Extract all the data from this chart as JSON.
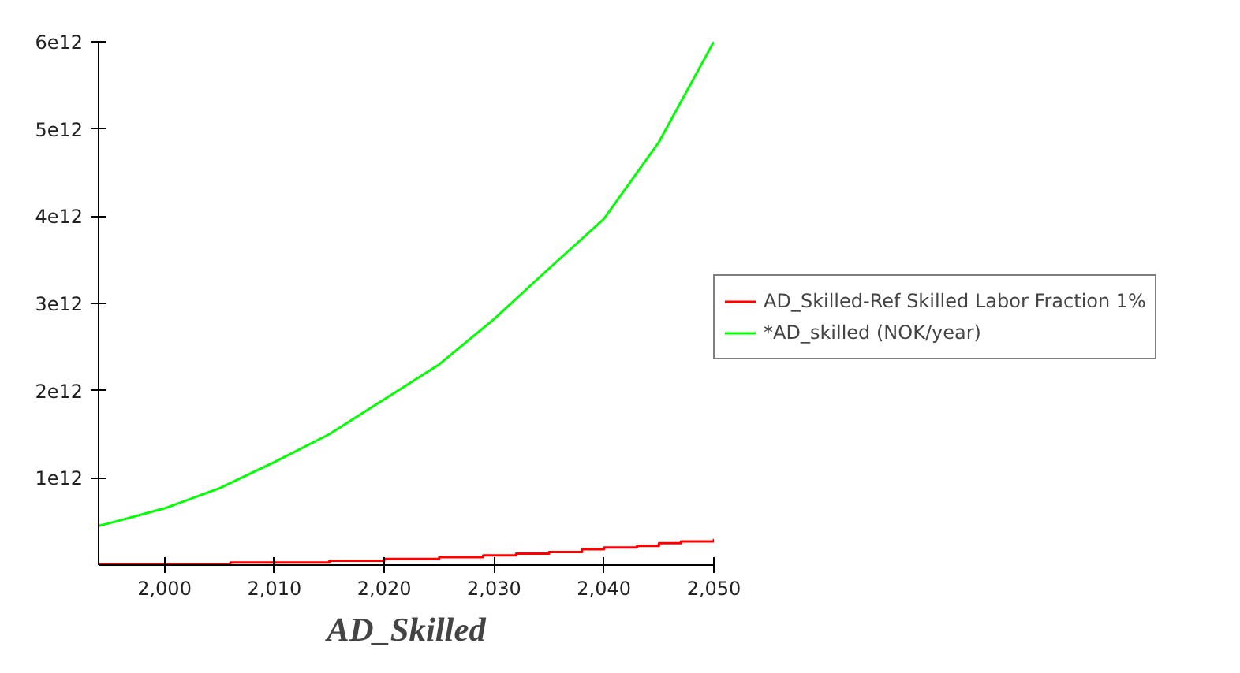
{
  "chart_data": {
    "type": "line",
    "title": "AD_Skilled",
    "xlim": [
      1994,
      2050
    ],
    "ylim": [
      0,
      6000000000000
    ],
    "xticks": [
      {
        "value": 2000,
        "label": "2,000"
      },
      {
        "value": 2010,
        "label": "2,010"
      },
      {
        "value": 2020,
        "label": "2,020"
      },
      {
        "value": 2030,
        "label": "2,030"
      },
      {
        "value": 2040,
        "label": "2,040"
      },
      {
        "value": 2050,
        "label": "2,050"
      }
    ],
    "yticks": [
      {
        "value": 1000000000000,
        "label": "1e12"
      },
      {
        "value": 2000000000000,
        "label": "2e12"
      },
      {
        "value": 3000000000000,
        "label": "3e12"
      },
      {
        "value": 4000000000000,
        "label": "4e12"
      },
      {
        "value": 5000000000000,
        "label": "5e12"
      },
      {
        "value": 6000000000000,
        "label": "6e12"
      }
    ],
    "grid": false,
    "legend": "right",
    "series": [
      {
        "name": "AD_Skilled-Ref Skilled Labor Fraction 1%",
        "color": "#ff0000",
        "type": "step",
        "x": [
          1994,
          2006,
          2015,
          2020,
          2025,
          2029,
          2032,
          2035,
          2038,
          2040,
          2043,
          2045,
          2047,
          2050
        ],
        "values": [
          10000000000,
          30000000000,
          50000000000,
          70000000000,
          90000000000,
          110000000000,
          130000000000,
          150000000000,
          180000000000,
          200000000000,
          220000000000,
          250000000000,
          270000000000,
          300000000000
        ]
      },
      {
        "name": "*AD_skilled (NOK/year)",
        "color": "#00ff00",
        "x": [
          1994,
          1995,
          2000,
          2005,
          2010,
          2015,
          2020,
          2025,
          2030,
          2035,
          2040,
          2045,
          2050
        ],
        "values": [
          450000000000,
          480000000000,
          650000000000,
          880000000000,
          1180000000000,
          1500000000000,
          1900000000000,
          2300000000000,
          2820000000000,
          3400000000000,
          3970000000000,
          4850000000000,
          6000000000000
        ]
      }
    ]
  }
}
